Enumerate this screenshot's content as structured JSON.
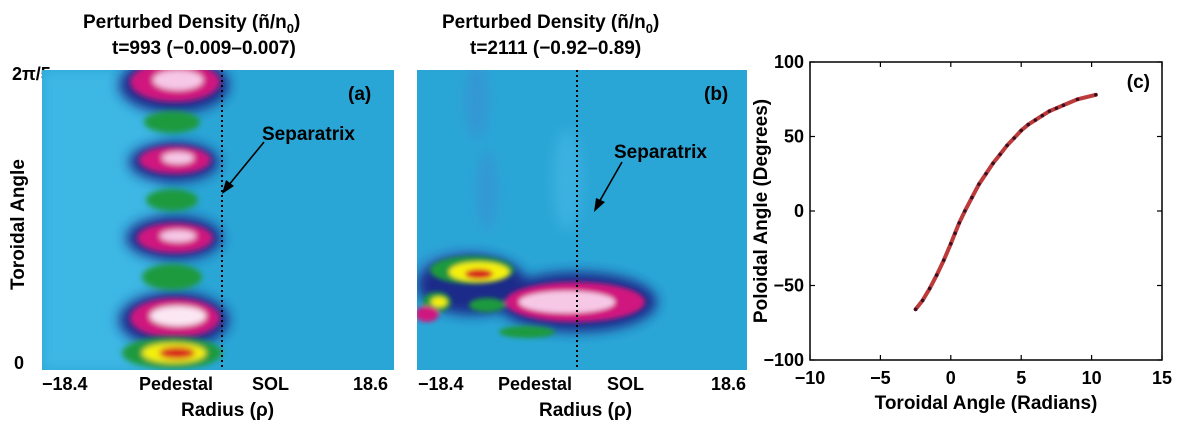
{
  "panel_a": {
    "title_line1": "Perturbed Density (ñ/n",
    "title_sub": "0",
    "title_close": ")",
    "title_line2": "t=993 (−0.009–0.007)",
    "ytick_top": "2π/5",
    "ytick_bottom": "0",
    "ylabel": "Toroidal Angle",
    "panel_label": "(a)",
    "annotation": "Separatrix",
    "xtick_left": "−18.4",
    "xtick_pedestal": "Pedestal",
    "xtick_sol": "SOL",
    "xtick_right": "18.6",
    "xlabel": "Radius (ρ)"
  },
  "panel_b": {
    "title_line1": "Perturbed Density (ñ/n",
    "title_sub": "0",
    "title_close": ")",
    "title_line2": "t=2111 (−0.92–0.89)",
    "panel_label": "(b)",
    "annotation": "Separatrix",
    "xtick_left": "−18.4",
    "xtick_pedestal": "Pedestal",
    "xtick_sol": "SOL",
    "xtick_right": "18.6",
    "xlabel": "Radius (ρ)"
  },
  "colors": {
    "background_field": "#2aa6d6",
    "magenta": "#d0157f",
    "green": "#1f9a3c",
    "yellow": "#f4f00a",
    "red": "#d81d1d",
    "dark_blue": "#1a2a8a"
  },
  "chart_data": [
    {
      "type": "heatmap",
      "panel": "a",
      "title": "Perturbed Density (ñ/n0) t=993 (−0.009–0.007)",
      "xlabel": "Radius (ρ)",
      "ylabel": "Toroidal Angle",
      "xlim": [
        -18.4,
        18.6
      ],
      "ylim_labels": [
        "0",
        "2π/5"
      ],
      "color_range": [
        -0.009,
        0.007
      ],
      "features": [
        {
          "kind": "alternating blobs along pedestal",
          "count_positive": 5,
          "count_negative": 4
        }
      ]
    },
    {
      "type": "heatmap",
      "panel": "b",
      "title": "Perturbed Density (ñ/n0) t=2111 (−0.92–0.89)",
      "xlabel": "Radius (ρ)",
      "xlim": [
        -18.4,
        18.6
      ],
      "color_range": [
        -0.92,
        0.89
      ]
    },
    {
      "type": "scatter",
      "panel": "c",
      "panel_label": "(c)",
      "xlabel": "Toroidal Angle (Radians)",
      "ylabel": "Poloidal Angle (Degrees)",
      "xlim": [
        -10,
        15
      ],
      "ylim": [
        -100,
        100
      ],
      "xticks": [
        -10,
        -5,
        0,
        5,
        10,
        15
      ],
      "yticks": [
        -100,
        -50,
        0,
        50,
        100
      ],
      "series": [
        {
          "values": [
            [
              -2.5,
              -66
            ],
            [
              -2.0,
              -60
            ],
            [
              -1.5,
              -52
            ],
            [
              -1.0,
              -43
            ],
            [
              -0.5,
              -33
            ],
            [
              0.0,
              -22
            ],
            [
              0.3,
              -15
            ],
            [
              0.6,
              -8
            ],
            [
              1.0,
              0
            ],
            [
              1.5,
              9
            ],
            [
              2.0,
              18
            ],
            [
              2.5,
              25
            ],
            [
              3.0,
              32
            ],
            [
              3.5,
              38
            ],
            [
              4.0,
              44
            ],
            [
              4.5,
              49
            ],
            [
              5.0,
              54
            ],
            [
              5.5,
              58
            ],
            [
              6.0,
              61
            ],
            [
              6.5,
              64
            ],
            [
              7.0,
              67
            ],
            [
              7.5,
              69
            ],
            [
              8.0,
              71
            ],
            [
              9.0,
              75
            ],
            [
              10.3,
              78
            ]
          ]
        }
      ]
    }
  ]
}
